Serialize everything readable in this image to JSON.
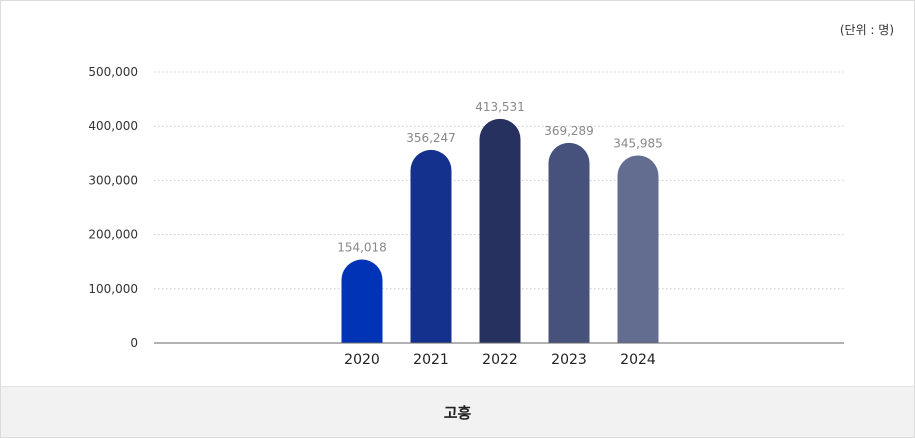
{
  "unit_label": "(단위 : 명)",
  "footer_label": "고흥",
  "chart_data": {
    "type": "bar",
    "categories": [
      "2020",
      "2021",
      "2022",
      "2023",
      "2024"
    ],
    "values": [
      154018,
      356247,
      413531,
      369289,
      345985
    ],
    "value_labels": [
      "154,018",
      "356,247",
      "413,531",
      "369,289",
      "345,985"
    ],
    "y_ticks": [
      "0",
      "100,000",
      "200,000",
      "300,000",
      "400,000",
      "500,000"
    ],
    "ylim": [
      0,
      500000
    ],
    "grid": true,
    "colors": [
      "#0033b5",
      "#15318e",
      "#27315f",
      "#46517c",
      "#636d90"
    ]
  }
}
